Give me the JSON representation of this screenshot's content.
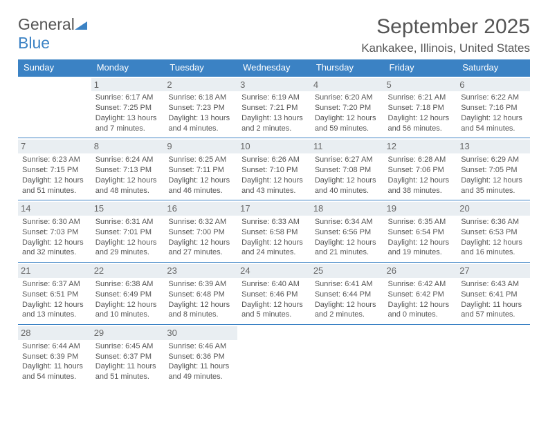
{
  "brand": {
    "word1": "General",
    "word2": "Blue"
  },
  "title": "September 2025",
  "location": "Kankakee, Illinois, United States",
  "colors": {
    "header_bg": "#3b82c4",
    "header_fg": "#ffffff",
    "daynum_bg": "#e9eef2",
    "border": "#3b82c4",
    "text": "#555555",
    "page_bg": "#ffffff"
  },
  "typography": {
    "title_fontsize_pt": 22,
    "location_fontsize_pt": 13,
    "header_fontsize_pt": 10,
    "body_fontsize_pt": 8
  },
  "dayHeaders": [
    "Sunday",
    "Monday",
    "Tuesday",
    "Wednesday",
    "Thursday",
    "Friday",
    "Saturday"
  ],
  "weeks": [
    [
      {
        "num": "",
        "sunrise": "",
        "sunset": "",
        "daylight1": "",
        "daylight2": ""
      },
      {
        "num": "1",
        "sunrise": "Sunrise: 6:17 AM",
        "sunset": "Sunset: 7:25 PM",
        "daylight1": "Daylight: 13 hours",
        "daylight2": "and 7 minutes."
      },
      {
        "num": "2",
        "sunrise": "Sunrise: 6:18 AM",
        "sunset": "Sunset: 7:23 PM",
        "daylight1": "Daylight: 13 hours",
        "daylight2": "and 4 minutes."
      },
      {
        "num": "3",
        "sunrise": "Sunrise: 6:19 AM",
        "sunset": "Sunset: 7:21 PM",
        "daylight1": "Daylight: 13 hours",
        "daylight2": "and 2 minutes."
      },
      {
        "num": "4",
        "sunrise": "Sunrise: 6:20 AM",
        "sunset": "Sunset: 7:20 PM",
        "daylight1": "Daylight: 12 hours",
        "daylight2": "and 59 minutes."
      },
      {
        "num": "5",
        "sunrise": "Sunrise: 6:21 AM",
        "sunset": "Sunset: 7:18 PM",
        "daylight1": "Daylight: 12 hours",
        "daylight2": "and 56 minutes."
      },
      {
        "num": "6",
        "sunrise": "Sunrise: 6:22 AM",
        "sunset": "Sunset: 7:16 PM",
        "daylight1": "Daylight: 12 hours",
        "daylight2": "and 54 minutes."
      }
    ],
    [
      {
        "num": "7",
        "sunrise": "Sunrise: 6:23 AM",
        "sunset": "Sunset: 7:15 PM",
        "daylight1": "Daylight: 12 hours",
        "daylight2": "and 51 minutes."
      },
      {
        "num": "8",
        "sunrise": "Sunrise: 6:24 AM",
        "sunset": "Sunset: 7:13 PM",
        "daylight1": "Daylight: 12 hours",
        "daylight2": "and 48 minutes."
      },
      {
        "num": "9",
        "sunrise": "Sunrise: 6:25 AM",
        "sunset": "Sunset: 7:11 PM",
        "daylight1": "Daylight: 12 hours",
        "daylight2": "and 46 minutes."
      },
      {
        "num": "10",
        "sunrise": "Sunrise: 6:26 AM",
        "sunset": "Sunset: 7:10 PM",
        "daylight1": "Daylight: 12 hours",
        "daylight2": "and 43 minutes."
      },
      {
        "num": "11",
        "sunrise": "Sunrise: 6:27 AM",
        "sunset": "Sunset: 7:08 PM",
        "daylight1": "Daylight: 12 hours",
        "daylight2": "and 40 minutes."
      },
      {
        "num": "12",
        "sunrise": "Sunrise: 6:28 AM",
        "sunset": "Sunset: 7:06 PM",
        "daylight1": "Daylight: 12 hours",
        "daylight2": "and 38 minutes."
      },
      {
        "num": "13",
        "sunrise": "Sunrise: 6:29 AM",
        "sunset": "Sunset: 7:05 PM",
        "daylight1": "Daylight: 12 hours",
        "daylight2": "and 35 minutes."
      }
    ],
    [
      {
        "num": "14",
        "sunrise": "Sunrise: 6:30 AM",
        "sunset": "Sunset: 7:03 PM",
        "daylight1": "Daylight: 12 hours",
        "daylight2": "and 32 minutes."
      },
      {
        "num": "15",
        "sunrise": "Sunrise: 6:31 AM",
        "sunset": "Sunset: 7:01 PM",
        "daylight1": "Daylight: 12 hours",
        "daylight2": "and 29 minutes."
      },
      {
        "num": "16",
        "sunrise": "Sunrise: 6:32 AM",
        "sunset": "Sunset: 7:00 PM",
        "daylight1": "Daylight: 12 hours",
        "daylight2": "and 27 minutes."
      },
      {
        "num": "17",
        "sunrise": "Sunrise: 6:33 AM",
        "sunset": "Sunset: 6:58 PM",
        "daylight1": "Daylight: 12 hours",
        "daylight2": "and 24 minutes."
      },
      {
        "num": "18",
        "sunrise": "Sunrise: 6:34 AM",
        "sunset": "Sunset: 6:56 PM",
        "daylight1": "Daylight: 12 hours",
        "daylight2": "and 21 minutes."
      },
      {
        "num": "19",
        "sunrise": "Sunrise: 6:35 AM",
        "sunset": "Sunset: 6:54 PM",
        "daylight1": "Daylight: 12 hours",
        "daylight2": "and 19 minutes."
      },
      {
        "num": "20",
        "sunrise": "Sunrise: 6:36 AM",
        "sunset": "Sunset: 6:53 PM",
        "daylight1": "Daylight: 12 hours",
        "daylight2": "and 16 minutes."
      }
    ],
    [
      {
        "num": "21",
        "sunrise": "Sunrise: 6:37 AM",
        "sunset": "Sunset: 6:51 PM",
        "daylight1": "Daylight: 12 hours",
        "daylight2": "and 13 minutes."
      },
      {
        "num": "22",
        "sunrise": "Sunrise: 6:38 AM",
        "sunset": "Sunset: 6:49 PM",
        "daylight1": "Daylight: 12 hours",
        "daylight2": "and 10 minutes."
      },
      {
        "num": "23",
        "sunrise": "Sunrise: 6:39 AM",
        "sunset": "Sunset: 6:48 PM",
        "daylight1": "Daylight: 12 hours",
        "daylight2": "and 8 minutes."
      },
      {
        "num": "24",
        "sunrise": "Sunrise: 6:40 AM",
        "sunset": "Sunset: 6:46 PM",
        "daylight1": "Daylight: 12 hours",
        "daylight2": "and 5 minutes."
      },
      {
        "num": "25",
        "sunrise": "Sunrise: 6:41 AM",
        "sunset": "Sunset: 6:44 PM",
        "daylight1": "Daylight: 12 hours",
        "daylight2": "and 2 minutes."
      },
      {
        "num": "26",
        "sunrise": "Sunrise: 6:42 AM",
        "sunset": "Sunset: 6:42 PM",
        "daylight1": "Daylight: 12 hours",
        "daylight2": "and 0 minutes."
      },
      {
        "num": "27",
        "sunrise": "Sunrise: 6:43 AM",
        "sunset": "Sunset: 6:41 PM",
        "daylight1": "Daylight: 11 hours",
        "daylight2": "and 57 minutes."
      }
    ],
    [
      {
        "num": "28",
        "sunrise": "Sunrise: 6:44 AM",
        "sunset": "Sunset: 6:39 PM",
        "daylight1": "Daylight: 11 hours",
        "daylight2": "and 54 minutes."
      },
      {
        "num": "29",
        "sunrise": "Sunrise: 6:45 AM",
        "sunset": "Sunset: 6:37 PM",
        "daylight1": "Daylight: 11 hours",
        "daylight2": "and 51 minutes."
      },
      {
        "num": "30",
        "sunrise": "Sunrise: 6:46 AM",
        "sunset": "Sunset: 6:36 PM",
        "daylight1": "Daylight: 11 hours",
        "daylight2": "and 49 minutes."
      },
      {
        "num": "",
        "sunrise": "",
        "sunset": "",
        "daylight1": "",
        "daylight2": ""
      },
      {
        "num": "",
        "sunrise": "",
        "sunset": "",
        "daylight1": "",
        "daylight2": ""
      },
      {
        "num": "",
        "sunrise": "",
        "sunset": "",
        "daylight1": "",
        "daylight2": ""
      },
      {
        "num": "",
        "sunrise": "",
        "sunset": "",
        "daylight1": "",
        "daylight2": ""
      }
    ]
  ]
}
